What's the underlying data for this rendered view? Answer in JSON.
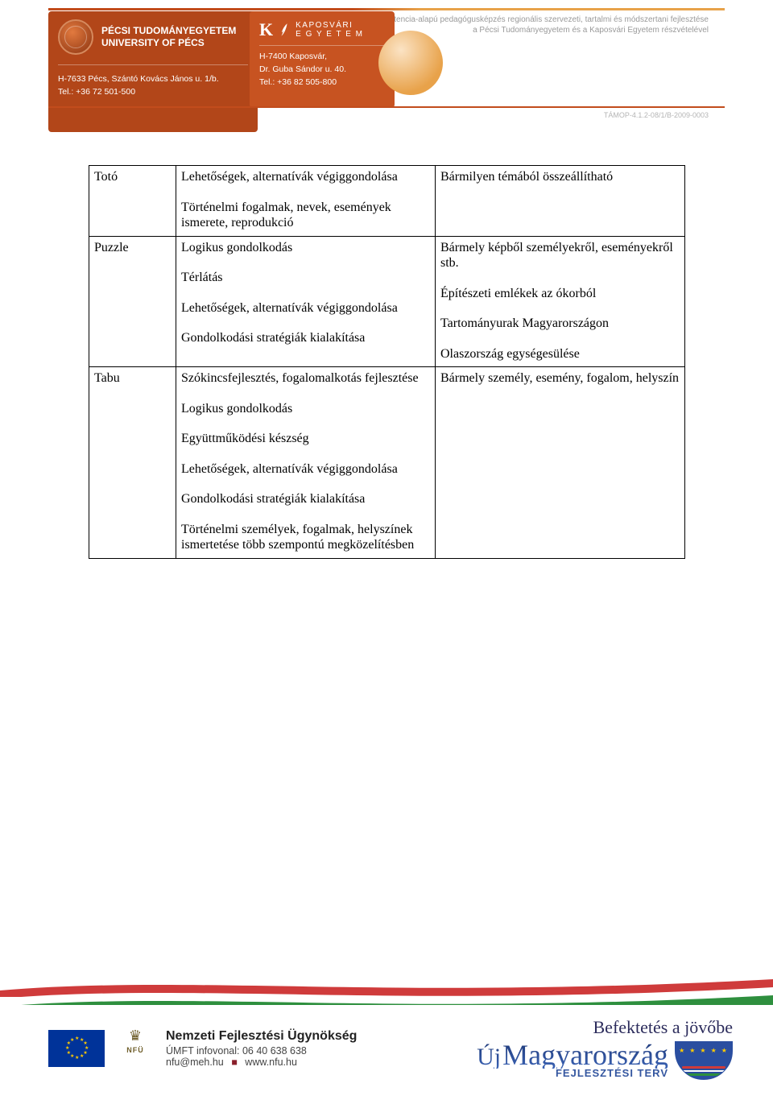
{
  "header": {
    "competence_line1": "A kompetencia-alapú pedagógusképzés regionális szervezeti, tartalmi és módszertani fejlesztése",
    "competence_line2": "a Pécsi Tudományegyetem és a Kaposvári Egyetem részvételével",
    "tamop": "TÁMOP-4.1.2-08/1/B-2009-0003",
    "pecs": {
      "title_hu": "PÉCSI TUDOMÁNYEGYETEM",
      "title_en": "UNIVERSITY OF PÉCS",
      "addr": "H-7633 Pécs, Szántó Kovács János u. 1/b.",
      "tel": "Tel.: +36 72 501-500"
    },
    "kaposvar": {
      "name_top": "KAPOSVÁRI",
      "name_bottom": "E G Y E T E M",
      "addr1": "H-7400 Kaposvár,",
      "addr2": "Dr. Guba Sándor u. 40.",
      "tel": "Tel.: +36 82 505-800"
    }
  },
  "table": {
    "rows": [
      {
        "c1": "Totó",
        "c2": [
          "Lehetőségek, alternatívák végiggondolása",
          "Történelmi fogalmak, nevek, események ismerete, reprodukció"
        ],
        "c3": [
          "Bármilyen témából összeállítható"
        ]
      },
      {
        "c1": "Puzzle",
        "c2": [
          "Logikus gondolkodás",
          "Térlátás",
          "Lehetőségek, alternatívák végiggondolása",
          "Gondolkodási stratégiák kialakítása"
        ],
        "c3": [
          "Bármely képből személyekről, eseményekről stb.",
          "Építészeti emlékek az ókorból",
          "Tartományurak Magyarországon",
          "Olaszország egységesülése"
        ]
      },
      {
        "c1": "Tabu",
        "c2": [
          "Szókincsfejlesztés, fogalomalkotás fejlesztése",
          "Logikus gondolkodás",
          "Együttműködési készség",
          "Lehetőségek, alternatívák végiggondolása",
          "Gondolkodási stratégiák kialakítása",
          "Történelmi személyek, fogalmak, helyszínek ismertetése több szempontú megközelítésben"
        ],
        "c3": [
          "Bármely személy, esemény, fogalom, helyszín"
        ]
      }
    ]
  },
  "footer": {
    "slogan": "Befektetés a jövőbe",
    "nfu_title": "Nemzeti Fejlesztési Ügynökség",
    "nfu_info": "ÚMFT infovonal: 06 40 638 638",
    "nfu_mail": "nfu@meh.hu",
    "nfu_web": "www.nfu.hu",
    "ujm_uj": "Új",
    "ujm_main": "Magyarország",
    "ujm_sub": "FEJLESZTÉSI TERV",
    "nfu_label": "NFÜ"
  },
  "colors": {
    "orange_dark": "#b24619",
    "orange_mid": "#c75321",
    "gold": "#e8a24a",
    "wave_red": "#cf3b3b",
    "wave_green": "#2e8f3e",
    "eu_blue": "#003399"
  }
}
